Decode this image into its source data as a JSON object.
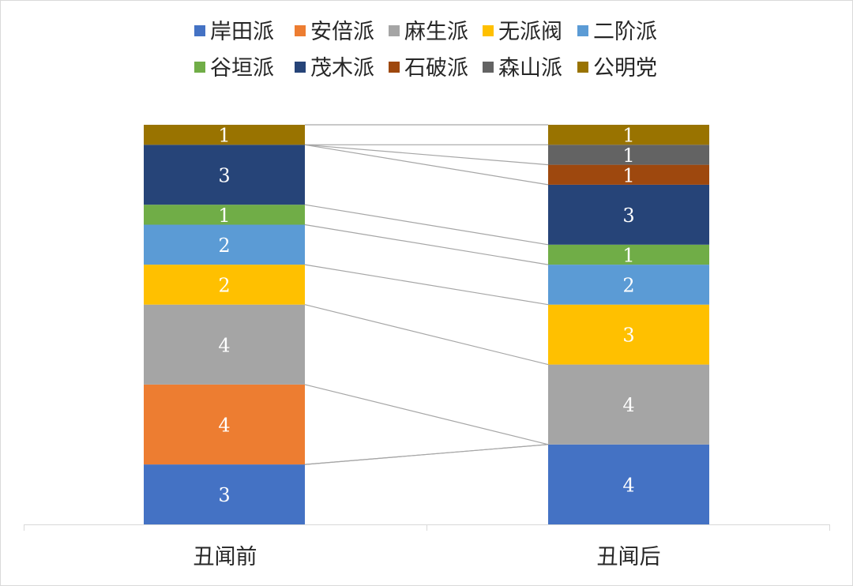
{
  "chart_data": {
    "type": "bar",
    "stacked": true,
    "categories": [
      "丑闻前",
      "丑闻后"
    ],
    "series": [
      {
        "name": "岸田派",
        "color": "#4472c4",
        "values": [
          3,
          4
        ]
      },
      {
        "name": "安倍派",
        "color": "#ed7d31",
        "values": [
          4,
          0
        ]
      },
      {
        "name": "麻生派",
        "color": "#a5a5a5",
        "values": [
          4,
          4
        ]
      },
      {
        "name": "无派阀",
        "color": "#ffc000",
        "values": [
          2,
          3
        ]
      },
      {
        "name": "二阶派",
        "color": "#5b9bd5",
        "values": [
          2,
          2
        ]
      },
      {
        "name": "谷垣派",
        "color": "#70ad47",
        "values": [
          1,
          1
        ]
      },
      {
        "name": "茂木派",
        "color": "#264478",
        "values": [
          3,
          3
        ]
      },
      {
        "name": "石破派",
        "color": "#9e480e",
        "values": [
          0,
          1
        ]
      },
      {
        "name": "森山派",
        "color": "#636363",
        "values": [
          0,
          1
        ]
      },
      {
        "name": "公明党",
        "color": "#997300",
        "values": [
          1,
          1
        ]
      }
    ],
    "ylim": [
      0,
      20
    ],
    "grid": false,
    "legend_position": "top",
    "series_lines": true,
    "data_labels": true
  }
}
